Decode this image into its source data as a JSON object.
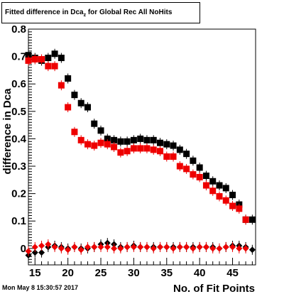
{
  "title": {
    "main": "Fitted difference in Dca",
    "sub": "z",
    "rest": " for Global Rec All NoHits"
  },
  "datestamp": "Mon May  8 15:30:57 2017",
  "chart_data": {
    "type": "scatter",
    "xlabel": "No. of Fit Points",
    "ylabel": "difference in Dca",
    "xlim": [
      14,
      48.5
    ],
    "ylim": [
      -0.06,
      0.8
    ],
    "xticks": [
      "15",
      "20",
      "25",
      "30",
      "35",
      "40",
      "45"
    ],
    "yticks": [
      "0",
      "0.1",
      "0.2",
      "0.3",
      "0.4",
      "0.5",
      "0.6",
      "0.7",
      "0.8"
    ],
    "x": [
      14,
      15,
      16,
      17,
      18,
      19,
      20,
      21,
      22,
      23,
      24,
      25,
      26,
      27,
      28,
      29,
      30,
      31,
      32,
      33,
      34,
      35,
      36,
      37,
      38,
      39,
      40,
      41,
      42,
      43,
      44,
      45,
      46,
      47,
      48
    ],
    "series": [
      {
        "color": "#000000",
        "marker": "square",
        "values": [
          0.705,
          0.695,
          0.685,
          0.695,
          0.71,
          0.695,
          0.62,
          0.56,
          0.53,
          0.515,
          0.455,
          0.43,
          0.4,
          0.395,
          0.39,
          0.39,
          0.395,
          0.4,
          0.395,
          0.395,
          0.385,
          0.38,
          0.375,
          0.36,
          0.345,
          0.32,
          0.295,
          0.265,
          0.245,
          0.23,
          0.22,
          0.195,
          0.16,
          0.105,
          0.105
        ]
      },
      {
        "color": "#ee0000",
        "marker": "square",
        "values": [
          0.685,
          0.69,
          0.69,
          0.665,
          0.665,
          0.595,
          0.515,
          0.425,
          0.395,
          0.38,
          0.375,
          0.385,
          0.38,
          0.37,
          0.35,
          0.355,
          0.365,
          0.365,
          0.365,
          0.36,
          0.355,
          0.335,
          0.335,
          0.3,
          0.29,
          0.27,
          0.26,
          0.23,
          0.21,
          0.19,
          0.175,
          0.155,
          0.145,
          0.105,
          null
        ]
      },
      {
        "color": "#000000",
        "marker": "diamond",
        "values": [
          -0.025,
          -0.015,
          -0.015,
          0.005,
          0.01,
          0.005,
          0.0,
          0.005,
          0.0,
          0.0,
          0.005,
          0.015,
          0.02,
          0.015,
          0.005,
          0.005,
          0.01,
          0.005,
          0.005,
          0.005,
          0.005,
          0.005,
          0.005,
          0.005,
          0.005,
          0.005,
          0.005,
          0.005,
          0.005,
          0.0,
          0.005,
          0.01,
          0.01,
          0.005,
          -0.005
        ]
      },
      {
        "color": "#ee0000",
        "marker": "diamond",
        "values": [
          -0.01,
          0.005,
          0.01,
          0.015,
          0.005,
          0.0,
          -0.005,
          0.005,
          -0.005,
          0.005,
          0.005,
          0.005,
          0.005,
          0.0,
          0.0,
          0.005,
          0.005,
          0.005,
          0.005,
          0.0,
          0.005,
          0.005,
          0.0,
          0.005,
          0.005,
          0.0,
          0.005,
          0.005,
          0.0,
          0.0,
          0.005,
          0.005,
          0.0,
          0.0,
          null
        ]
      }
    ]
  }
}
